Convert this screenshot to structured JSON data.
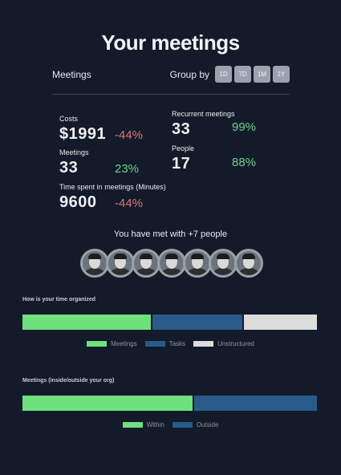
{
  "page_title": "Your meetings",
  "header": {
    "section_label": "Meetings",
    "group_by_label": "Group by",
    "group_by_options": [
      "1D",
      "7D",
      "1M",
      "1Y"
    ]
  },
  "stats": {
    "costs": {
      "label": "Costs",
      "value": "$1991",
      "change": "-44%"
    },
    "meetings": {
      "label": "Meetings",
      "value": "33",
      "change": "23%"
    },
    "time_spent": {
      "label": "Time spent in meetings (Minutes)",
      "value": "9600",
      "change": "-44%"
    },
    "recurrent": {
      "label": "Recurrent meetings",
      "value": "33",
      "change": "99%"
    },
    "people": {
      "label": "People",
      "value": "17",
      "change": "88%"
    }
  },
  "met_with_text": "You have met with +7 people",
  "avatars_count": 7,
  "time_organized": {
    "title": "How is your time organized",
    "segments": [
      {
        "name": "Meetings",
        "value": 44,
        "color": "#6ee07e"
      },
      {
        "name": "Tasks",
        "value": 31,
        "color": "#285b8a"
      },
      {
        "name": "Unstructured",
        "value": 25,
        "color": "#dcdcdc"
      }
    ]
  },
  "inside_outside": {
    "title": "Meetings (inside/outside your org)",
    "segments": [
      {
        "name": "Within",
        "value": 58,
        "color": "#6ee07e"
      },
      {
        "name": "Outside",
        "value": 42,
        "color": "#285b8a"
      }
    ]
  },
  "colors": {
    "negative": "#d9787a",
    "positive": "#6fcf8f",
    "background": "#131a29"
  }
}
